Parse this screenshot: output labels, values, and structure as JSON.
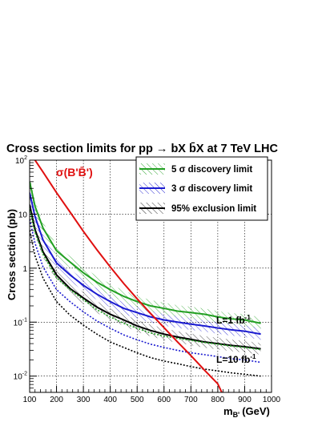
{
  "chart_data": {
    "type": "line",
    "title": "Cross section limits for pp → bX b̄X at 7 TeV LHC",
    "ylabel": "Cross section (pb)",
    "xlabel": "m",
    "xlabel_sub": "B'",
    "xlabel_unit": "(GeV)",
    "xlim": [
      100,
      1000
    ],
    "ylim": [
      0.005,
      100
    ],
    "yscale": "log",
    "grid": true,
    "legend_position": "top-right",
    "x_ticks": [
      "100",
      "200",
      "300",
      "400",
      "500",
      "600",
      "700",
      "800",
      "900",
      "1000"
    ],
    "y_ticks": [
      {
        "value": 0.01,
        "base": "10",
        "exp": "-2"
      },
      {
        "value": 0.1,
        "base": "10",
        "exp": "-1"
      },
      {
        "value": 1,
        "base": "1",
        "exp": ""
      },
      {
        "value": 10,
        "base": "10",
        "exp": ""
      },
      {
        "value": 100,
        "base": "10",
        "exp": "2"
      }
    ],
    "legend": [
      {
        "label": "5 σ discovery limit",
        "color": "#22a022"
      },
      {
        "label": "3 σ discovery limit",
        "color": "#1a1ad0"
      },
      {
        "label": "95% exclusion limit",
        "color": "#000000"
      }
    ],
    "annotations": {
      "sigma_label": "σ(B'B̄')",
      "lumi_1": "L=1 fb",
      "lumi_1_exp": "-1",
      "lumi_10": "L=10 fb",
      "lumi_10_exp": "-1"
    },
    "sigma_curve": {
      "color": "#e01010",
      "x": [
        120,
        150,
        200,
        250,
        300,
        350,
        400,
        450,
        500,
        550,
        600,
        650,
        700,
        750,
        800,
        815
      ],
      "y": [
        100,
        60,
        25,
        11,
        4.8,
        2.2,
        1.05,
        0.52,
        0.27,
        0.145,
        0.079,
        0.043,
        0.024,
        0.013,
        0.0072,
        0.005
      ]
    },
    "series": [
      {
        "name": "5 σ discovery limit",
        "luminosity": "1",
        "color": "#22a022",
        "dashed": false,
        "x": [
          100,
          120,
          150,
          200,
          250,
          300,
          350,
          400,
          450,
          500,
          550,
          600,
          650,
          700,
          750,
          800,
          850,
          900,
          960
        ],
        "y": [
          40,
          14,
          5.5,
          2.1,
          1.3,
          0.82,
          0.55,
          0.4,
          0.3,
          0.24,
          0.2,
          0.18,
          0.16,
          0.15,
          0.14,
          0.125,
          0.115,
          0.11,
          0.095
        ]
      },
      {
        "name": "3 σ discovery limit",
        "luminosity": "1",
        "color": "#1a1ad0",
        "dashed": false,
        "x": [
          100,
          120,
          150,
          200,
          250,
          300,
          350,
          400,
          450,
          500,
          550,
          600,
          650,
          700,
          750,
          800,
          850,
          900,
          960
        ],
        "y": [
          25,
          9,
          3.3,
          1.25,
          0.75,
          0.48,
          0.33,
          0.24,
          0.18,
          0.15,
          0.125,
          0.11,
          0.1,
          0.092,
          0.085,
          0.078,
          0.072,
          0.068,
          0.06
        ]
      },
      {
        "name": "95% exclusion limit",
        "luminosity": "1",
        "color": "#000000",
        "dashed": false,
        "x": [
          100,
          120,
          150,
          200,
          250,
          300,
          350,
          400,
          450,
          500,
          550,
          600,
          650,
          700,
          750,
          800,
          850,
          900,
          960
        ],
        "y": [
          15,
          5.2,
          2.0,
          0.75,
          0.42,
          0.28,
          0.19,
          0.14,
          0.11,
          0.085,
          0.07,
          0.06,
          0.053,
          0.048,
          0.043,
          0.04,
          0.037,
          0.035,
          0.032
        ]
      },
      {
        "name": "5 σ discovery limit",
        "luminosity": "10",
        "color": "#22a022",
        "dashed": true,
        "x": [
          100,
          120,
          150,
          200,
          250,
          300,
          350,
          400,
          450,
          500,
          550,
          600,
          650,
          700,
          750,
          800,
          850,
          900,
          960
        ],
        "y": [
          13,
          4.6,
          1.8,
          0.66,
          0.4,
          0.26,
          0.17,
          0.125,
          0.095,
          0.077,
          0.063,
          0.055,
          0.05,
          0.046,
          0.042,
          0.039,
          0.036,
          0.034,
          0.031
        ]
      },
      {
        "name": "3 σ discovery limit",
        "luminosity": "10",
        "color": "#1a1ad0",
        "dashed": true,
        "x": [
          100,
          120,
          150,
          200,
          250,
          300,
          350,
          400,
          450,
          500,
          550,
          600,
          650,
          700,
          750,
          800,
          850,
          900,
          960
        ],
        "y": [
          8,
          2.9,
          1.05,
          0.4,
          0.24,
          0.155,
          0.105,
          0.077,
          0.058,
          0.047,
          0.039,
          0.034,
          0.03,
          0.027,
          0.025,
          0.023,
          0.021,
          0.02,
          0.018
        ]
      },
      {
        "name": "95% exclusion limit",
        "luminosity": "10",
        "color": "#000000",
        "dashed": true,
        "x": [
          100,
          120,
          150,
          200,
          250,
          300,
          350,
          400,
          450,
          500,
          550,
          600,
          650,
          700,
          750,
          800,
          850,
          900,
          960
        ],
        "y": [
          5,
          1.7,
          0.65,
          0.24,
          0.135,
          0.088,
          0.06,
          0.043,
          0.034,
          0.027,
          0.022,
          0.019,
          0.017,
          0.015,
          0.0135,
          0.0125,
          0.0115,
          0.0108,
          0.01
        ]
      }
    ]
  }
}
